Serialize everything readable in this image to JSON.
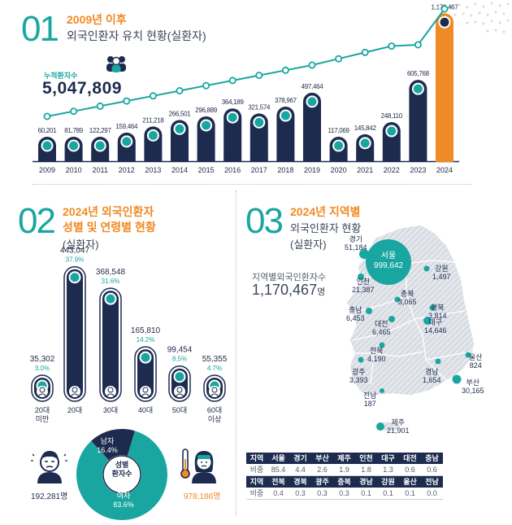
{
  "section1": {
    "number": "01",
    "title": "2009년 이후",
    "subtitle": "외국인환자 유치 현황(실환자)",
    "cumulative_label": "누적환자수",
    "cumulative_value": "5,047,809"
  },
  "section2": {
    "number": "02",
    "title_line1": "2024년 외국인환자",
    "title_line2": "성별 및 연령별 현황",
    "subtitle": "(실환자)",
    "donut_center": "성별\n환자수",
    "male_label": "남자",
    "male_pct": "16.4%",
    "female_label": "여자",
    "female_pct": "83.6%",
    "male_count": "192,281명",
    "female_count": "978,186명"
  },
  "section3": {
    "number": "03",
    "title": "2024년 지역별",
    "subtitle1": "외국인환자 현황",
    "subtitle2": "(실환자)",
    "total_label": "지역별외국인환자수",
    "total_value": "1,170,467",
    "total_unit": "명",
    "map_labels": [
      {
        "name": "경기",
        "value": "51,184"
      },
      {
        "name": "서울",
        "value": "999,642"
      },
      {
        "name": "인천",
        "value": "21,387"
      },
      {
        "name": "강원",
        "value": "1,497"
      },
      {
        "name": "충북",
        "value": "3,065"
      },
      {
        "name": "충남",
        "value": "6,453"
      },
      {
        "name": "경북",
        "value": "3,814"
      },
      {
        "name": "대전",
        "value": "6,465"
      },
      {
        "name": "대구",
        "value": "14,646"
      },
      {
        "name": "전북",
        "value": "4,190"
      },
      {
        "name": "울산",
        "value": "824"
      },
      {
        "name": "광주",
        "value": "3,393"
      },
      {
        "name": "경남",
        "value": "1,654"
      },
      {
        "name": "부산",
        "value": "30,165"
      },
      {
        "name": "전남",
        "value": "187"
      },
      {
        "name": "제주",
        "value": "21,901"
      }
    ],
    "table": [
      {
        "header": [
          "지역",
          "서울",
          "경기",
          "부산",
          "제주",
          "인천",
          "대구",
          "대전",
          "충남"
        ],
        "values": [
          "비중",
          "85.4",
          "4.4",
          "2.6",
          "1.9",
          "1.8",
          "1.3",
          "0.6",
          "0.6"
        ]
      },
      {
        "header": [
          "지역",
          "전북",
          "경북",
          "광주",
          "충북",
          "경남",
          "강원",
          "울산",
          "전남"
        ],
        "values": [
          "비중",
          "0.4",
          "0.3",
          "0.3",
          "0.3",
          "0.1",
          "0.1",
          "0.1",
          "0.0"
        ]
      }
    ]
  },
  "colors": {
    "navy": "#1d2b4f",
    "teal": "#19a6a0",
    "orange": "#f08a24",
    "light_teal": "#8fd4cf"
  },
  "chart_data": [
    {
      "type": "bar",
      "title": "외국인환자 유치 현황(실환자)",
      "categories": [
        "2009",
        "2010",
        "2011",
        "2012",
        "2013",
        "2014",
        "2015",
        "2016",
        "2017",
        "2018",
        "2019",
        "2020",
        "2021",
        "2022",
        "2023",
        "2024"
      ],
      "values": [
        60201,
        81789,
        122297,
        159464,
        211218,
        266501,
        296889,
        364189,
        321574,
        378967,
        497464,
        117069,
        145842,
        248110,
        605768,
        1170467
      ],
      "value_labels": [
        "60,201",
        "81,789",
        "122,297",
        "159,464",
        "211,218",
        "266,501",
        "296,889",
        "364,189",
        "321,574",
        "378,967",
        "497,464",
        "117,069",
        "145,842",
        "248,110",
        "605,768",
        "1,170,467"
      ],
      "highlight_color": "#f08a24"
    },
    {
      "type": "bar",
      "categories": [
        "20대\n미만",
        "20대",
        "30대",
        "40대",
        "50대",
        "60대\n이상"
      ],
      "values": [
        35302,
        443047,
        368548,
        165810,
        99454,
        55355
      ],
      "value_labels": [
        "35,302",
        "443,047",
        "368,548",
        "165,810",
        "99,454",
        "55,355"
      ],
      "percent_labels": [
        "3.0%",
        "37.9%",
        "31.6%",
        "14.2%",
        "8.5%",
        "4.7%"
      ]
    },
    {
      "type": "pie",
      "categories": [
        "남자",
        "여자"
      ],
      "values": [
        16.4,
        83.6
      ]
    }
  ]
}
